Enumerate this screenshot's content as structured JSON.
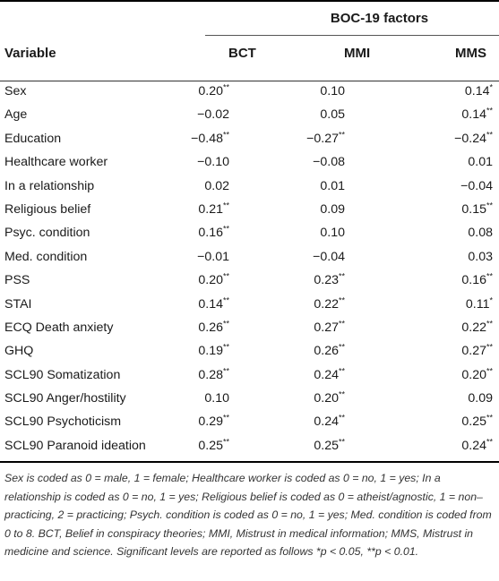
{
  "table": {
    "group_header": "BOC-19 factors",
    "columns": [
      "Variable",
      "BCT",
      "MMI",
      "MMS"
    ],
    "rows": [
      {
        "variable": "Sex",
        "bct": "0.20**",
        "mmi": "0.10",
        "mms": "0.14*"
      },
      {
        "variable": "Age",
        "bct": "−0.02",
        "mmi": "0.05",
        "mms": "0.14**"
      },
      {
        "variable": "Education",
        "bct": "−0.48**",
        "mmi": "−0.27**",
        "mms": "−0.24**"
      },
      {
        "variable": "Healthcare worker",
        "bct": "−0.10",
        "mmi": "−0.08",
        "mms": "0.01"
      },
      {
        "variable": "In a relationship",
        "bct": "0.02",
        "mmi": "0.01",
        "mms": "−0.04"
      },
      {
        "variable": "Religious belief",
        "bct": "0.21**",
        "mmi": "0.09",
        "mms": "0.15**"
      },
      {
        "variable": "Psyc. condition",
        "bct": "0.16**",
        "mmi": "0.10",
        "mms": "0.08"
      },
      {
        "variable": "Med. condition",
        "bct": "−0.01",
        "mmi": "−0.04",
        "mms": "0.03"
      },
      {
        "variable": "PSS",
        "bct": "0.20**",
        "mmi": "0.23**",
        "mms": "0.16**"
      },
      {
        "variable": "STAI",
        "bct": "0.14**",
        "mmi": "0.22**",
        "mms": "0.11*"
      },
      {
        "variable": "ECQ Death anxiety",
        "bct": "0.26**",
        "mmi": "0.27**",
        "mms": "0.22**"
      },
      {
        "variable": "GHQ",
        "bct": "0.19**",
        "mmi": "0.26**",
        "mms": "0.27**"
      },
      {
        "variable": "SCL90 Somatization",
        "bct": "0.28**",
        "mmi": "0.24**",
        "mms": "0.20**"
      },
      {
        "variable": "SCL90 Anger/hostility",
        "bct": "0.10",
        "mmi": "0.20**",
        "mms": "0.09"
      },
      {
        "variable": "SCL90 Psychoticism",
        "bct": "0.29**",
        "mmi": "0.24**",
        "mms": "0.25**"
      },
      {
        "variable": "SCL90 Paranoid ideation",
        "bct": "0.25**",
        "mmi": "0.25**",
        "mms": "0.24**"
      }
    ]
  },
  "footnote": "Sex is coded as 0 = male, 1 = female; Healthcare worker is coded as 0 = no, 1 = yes; In a relationship is coded as 0 = no, 1 = yes; Religious belief is coded as 0 = atheist/agnostic, 1 = non–practicing, 2 = practicing; Psych. condition is coded as 0 = no, 1 = yes; Med. condition is coded from 0 to 8. BCT, Belief in conspiracy theories; MMI, Mistrust in medical information; MMS, Mistrust in medicine and science. Significant levels are reported as follows *p < 0.05, **p < 0.01."
}
